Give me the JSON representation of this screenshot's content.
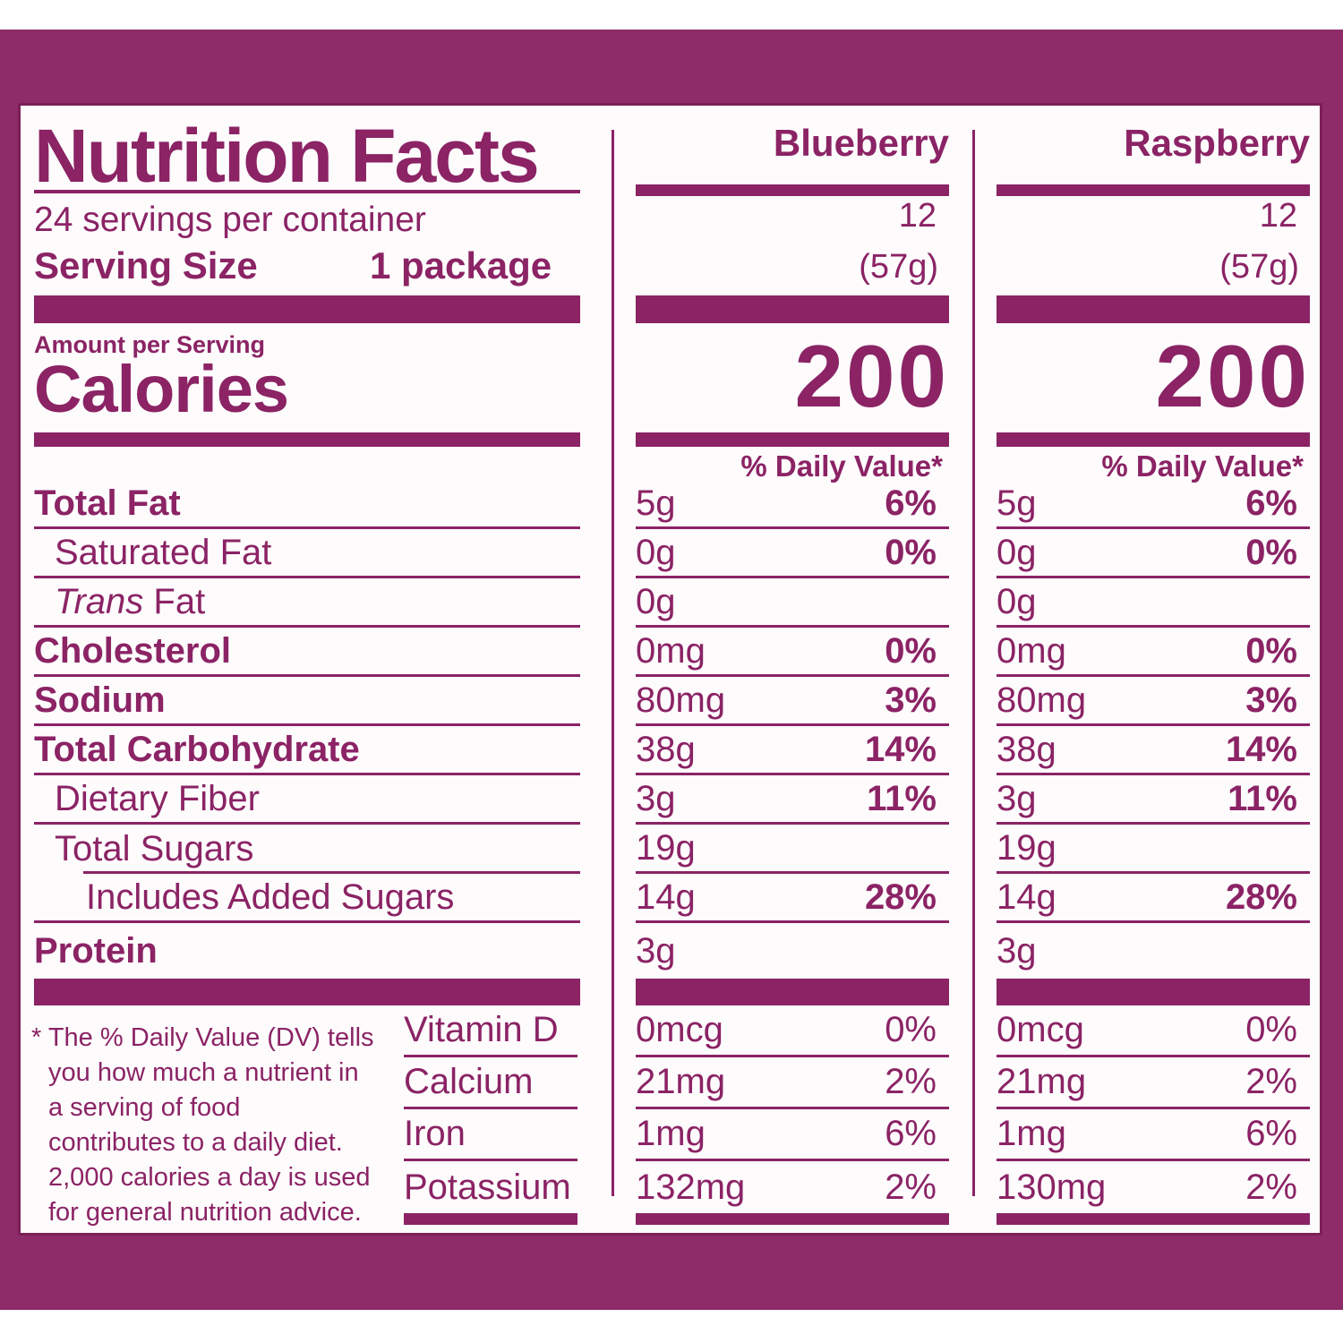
{
  "colors": {
    "ink": "#8b2365",
    "band": "#8e2b69",
    "panel": "#fdfbfc"
  },
  "header": {
    "title": "Nutrition Facts",
    "servings_per_container": "24 servings per container",
    "serving_size_label": "Serving Size",
    "serving_size_value": "1 package",
    "amount_per_serving": "Amount per Serving",
    "calories_label": "Calories",
    "daily_value_header": "% Daily Value*"
  },
  "columns": [
    {
      "name": "Blueberry",
      "servings": "12",
      "weight": "(57g)",
      "calories": "200"
    },
    {
      "name": "Raspberry",
      "servings": "12",
      "weight": "(57g)",
      "calories": "200"
    }
  ],
  "nutrient_rows": [
    {
      "label": "Total Fat",
      "bold": true,
      "indent": 0,
      "values": [
        {
          "amount": "5g",
          "dv": "6%"
        },
        {
          "amount": "5g",
          "dv": "6%"
        }
      ]
    },
    {
      "label": "Saturated Fat",
      "bold": false,
      "indent": 1,
      "values": [
        {
          "amount": "0g",
          "dv": "0%"
        },
        {
          "amount": "0g",
          "dv": "0%"
        }
      ]
    },
    {
      "label_italic": "Trans",
      "label": " Fat",
      "bold": false,
      "indent": 1,
      "values": [
        {
          "amount": "0g",
          "dv": ""
        },
        {
          "amount": "0g",
          "dv": ""
        }
      ]
    },
    {
      "label": "Cholesterol",
      "bold": true,
      "indent": 0,
      "values": [
        {
          "amount": "0mg",
          "dv": "0%"
        },
        {
          "amount": "0mg",
          "dv": "0%"
        }
      ]
    },
    {
      "label": "Sodium",
      "bold": true,
      "indent": 0,
      "values": [
        {
          "amount": "80mg",
          "dv": "3%"
        },
        {
          "amount": "80mg",
          "dv": "3%"
        }
      ]
    },
    {
      "label": "Total Carbohydrate",
      "bold": true,
      "indent": 0,
      "values": [
        {
          "amount": "38g",
          "dv": "14%"
        },
        {
          "amount": "38g",
          "dv": "14%"
        }
      ]
    },
    {
      "label": "Dietary Fiber",
      "bold": false,
      "indent": 1,
      "values": [
        {
          "amount": "3g",
          "dv": "11%"
        },
        {
          "amount": "3g",
          "dv": "11%"
        }
      ]
    },
    {
      "label": "Total Sugars",
      "bold": false,
      "indent": 1,
      "indent_line": true,
      "values": [
        {
          "amount": "19g",
          "dv": ""
        },
        {
          "amount": "19g",
          "dv": ""
        }
      ]
    },
    {
      "label": "Includes Added Sugars",
      "bold": false,
      "indent": 2,
      "values": [
        {
          "amount": "14g",
          "dv": "28%"
        },
        {
          "amount": "14g",
          "dv": "28%"
        }
      ]
    },
    {
      "label": "Protein",
      "bold": true,
      "indent": 0,
      "last": true,
      "values": [
        {
          "amount": "3g",
          "dv": ""
        },
        {
          "amount": "3g",
          "dv": ""
        }
      ]
    }
  ],
  "vitamin_rows": [
    {
      "label": "Vitamin D",
      "values": [
        {
          "amount": "0mcg",
          "dv": "0%"
        },
        {
          "amount": "0mcg",
          "dv": "0%"
        }
      ]
    },
    {
      "label": "Calcium",
      "values": [
        {
          "amount": "21mg",
          "dv": "2%"
        },
        {
          "amount": "21mg",
          "dv": "2%"
        }
      ]
    },
    {
      "label": "Iron",
      "values": [
        {
          "amount": "1mg",
          "dv": "6%"
        },
        {
          "amount": "1mg",
          "dv": "6%"
        }
      ]
    },
    {
      "label": "Potassium",
      "values": [
        {
          "amount": "132mg",
          "dv": "2%"
        },
        {
          "amount": "130mg",
          "dv": "2%"
        }
      ]
    }
  ],
  "footnote_lines": [
    "* The % Daily Value (DV) tells",
    "you how much a nutrient in",
    "a serving of food",
    "contributes to a daily diet.",
    "2,000 calories a day is used",
    "for general nutrition advice."
  ]
}
